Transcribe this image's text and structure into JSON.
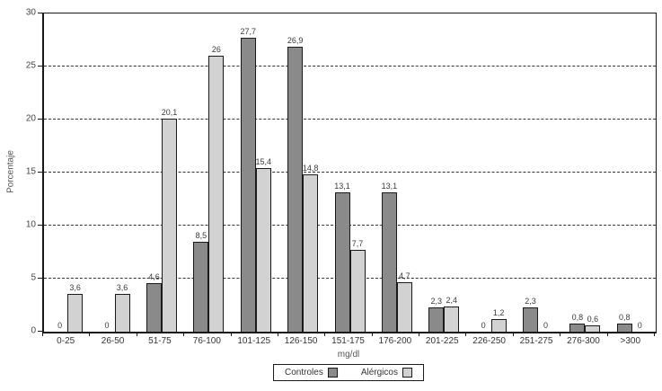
{
  "chart_data": {
    "type": "bar",
    "title": "",
    "xlabel": "mg/dl",
    "ylabel": "Porcentaje",
    "ylim": [
      0,
      30
    ],
    "yticks": [
      0,
      5,
      10,
      15,
      20,
      25,
      30
    ],
    "grid": "horizontal-dashed",
    "legend_position": "bottom",
    "categories": [
      "0-25",
      "26-50",
      "51-75",
      "76-100",
      "101-125",
      "126-150",
      "151-175",
      "176-200",
      "201-225",
      "226-250",
      "251-275",
      "276-300",
      ">300"
    ],
    "series": [
      {
        "name": "Controles",
        "color": "#8a8a8a",
        "values": [
          0,
          0,
          4.6,
          8.5,
          27.7,
          26.9,
          13.1,
          13.1,
          2.3,
          0,
          2.3,
          0.8,
          0.8
        ],
        "labels": [
          "0",
          "0",
          "4,6",
          "8,5",
          "27,7",
          "26,9",
          "13,1",
          "13,1",
          "2,3",
          "0",
          "2,3",
          "0,8",
          "0,8"
        ]
      },
      {
        "name": "Alérgicos",
        "color": "#d2d2d2",
        "values": [
          3.6,
          3.6,
          20.1,
          26,
          15.4,
          14.8,
          7.7,
          4.7,
          2.4,
          1.2,
          0,
          0.6,
          0
        ],
        "labels": [
          "3,6",
          "3,6",
          "20,1",
          "26",
          "15,4",
          "14,8",
          "7,7",
          "4,7",
          "2,4",
          "1,2",
          "0",
          "0,6",
          "0"
        ]
      }
    ]
  }
}
